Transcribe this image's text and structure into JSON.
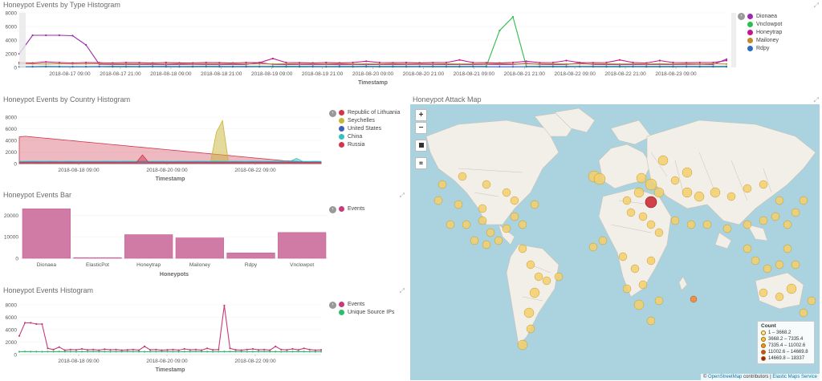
{
  "panels": {
    "type_histogram": {
      "title": "Honeypot Events by Type Histogram",
      "xlabel": "Timestamp",
      "xticks": [
        "2018-08-17 09:00",
        "2018-08-17 21:00",
        "2018-08-18 09:00",
        "2018-08-18 21:00",
        "2018-08-19 09:00",
        "2018-08-19 21:00",
        "2018-08-20 09:00",
        "2018-08-20 21:00",
        "2018-08-21 09:00",
        "2018-08-21 21:00",
        "2018-08-22 09:00",
        "2018-08-22 21:00",
        "2018-08-23 09:00"
      ],
      "yticks": [
        "8000",
        "6000",
        "4000",
        "2000",
        "0"
      ],
      "legend": [
        {
          "label": "Dionaea",
          "color": "#9c27b0"
        },
        {
          "label": "Vnclowpot",
          "color": "#2ebd4e"
        },
        {
          "label": "Honeytrap",
          "color": "#c2188f"
        },
        {
          "label": "Mailoney",
          "color": "#c28a2b"
        },
        {
          "label": "Rdpy",
          "color": "#2e6dbd"
        }
      ]
    },
    "country_histogram": {
      "title": "Honeypot Events by Country Histogram",
      "xlabel": "Timestamp",
      "xticks": [
        "2018-08-18 09:00",
        "2018-08-20 09:00",
        "2018-08-22 09:00"
      ],
      "yticks": [
        "8000",
        "6000",
        "4000",
        "2000",
        "0"
      ],
      "legend": [
        {
          "label": "Republic of Lithuania",
          "color": "#d0374c"
        },
        {
          "label": "Seychelles",
          "color": "#c8b53a"
        },
        {
          "label": "United States",
          "color": "#3f5fb8"
        },
        {
          "label": "China",
          "color": "#35c0c6"
        },
        {
          "label": "Russia",
          "color": "#d0374c"
        }
      ]
    },
    "events_bar": {
      "title": "Honeypot Events Bar",
      "xlabel": "Honeypots",
      "yticks": [
        "20000",
        "10000",
        "0"
      ],
      "legend": [
        {
          "label": "Events",
          "color": "#c73a7b"
        }
      ]
    },
    "events_histogram": {
      "title": "Honeypot Events Histogram",
      "xlabel": "Timestamp",
      "xticks": [
        "2018-08-18 09:00",
        "2018-08-20 09:00",
        "2018-08-22 09:00"
      ],
      "yticks": [
        "8000",
        "6000",
        "4000",
        "2000",
        "0"
      ],
      "legend": [
        {
          "label": "Events",
          "color": "#c73a7b"
        },
        {
          "label": "Unique Source IPs",
          "color": "#2ebd6e"
        }
      ]
    },
    "attack_map": {
      "title": "Honeypot Attack Map",
      "controls": {
        "zoom_in": "+",
        "zoom_out": "−"
      },
      "legend": {
        "title": "Count",
        "ranges": [
          {
            "label": "1 – 3668.2",
            "color": "#fde6a0"
          },
          {
            "label": "3668.2 – 7335.4",
            "color": "#f6c243"
          },
          {
            "label": "7335.4 – 11002.6",
            "color": "#f08c2a"
          },
          {
            "label": "11002.6 – 14669.8",
            "color": "#d9442b"
          },
          {
            "label": "14669.8 – 18337",
            "color": "#b01a1a"
          }
        ]
      },
      "attribution": {
        "prefix": "© ",
        "osm": "OpenStreetMap",
        "middle": " contributors | ",
        "ems": "Elastic Maps Service"
      }
    }
  },
  "chart_data": [
    {
      "type": "line",
      "title": "Honeypot Events by Type Histogram",
      "xlabel": "Timestamp",
      "ylim": [
        0,
        8000
      ],
      "series": [
        {
          "name": "Dionaea",
          "color": "#9c27b0",
          "values": [
            2000,
            4700,
            4700,
            4700,
            4650,
            3300,
            450,
            420,
            430,
            420,
            420,
            400,
            420,
            430,
            420,
            400,
            430,
            420,
            700,
            430,
            420,
            410,
            420,
            430,
            400,
            420,
            410,
            420,
            420,
            420,
            430,
            410,
            420,
            420,
            420,
            430,
            420,
            420,
            600,
            430,
            420,
            420,
            640,
            420,
            420,
            400,
            420,
            410,
            430,
            420,
            440,
            450,
            420,
            1200
          ]
        },
        {
          "name": "Vnclowpot",
          "color": "#2ebd4e",
          "values": [
            80,
            120,
            150,
            130,
            110,
            120,
            140,
            150,
            150,
            140,
            150,
            150,
            140,
            150,
            160,
            150,
            140,
            150,
            150,
            150,
            160,
            150,
            150,
            140,
            150,
            150,
            160,
            150,
            150,
            150,
            150,
            150,
            150,
            150,
            150,
            150,
            5400,
            7400,
            150,
            150,
            150,
            150,
            150,
            150,
            150,
            150,
            150,
            150,
            150,
            150,
            150,
            150,
            150,
            150
          ]
        },
        {
          "name": "Honeytrap",
          "color": "#c2188f",
          "values": [
            700,
            650,
            800,
            700,
            650,
            700,
            680,
            650,
            700,
            680,
            650,
            700,
            660,
            650,
            700,
            680,
            650,
            700,
            680,
            1300,
            700,
            680,
            650,
            700,
            660,
            700,
            900,
            700,
            680,
            700,
            660,
            690,
            700,
            1100,
            700,
            680,
            650,
            700,
            900,
            680,
            700,
            1000,
            700,
            680,
            700,
            1100,
            700,
            650,
            1000,
            700,
            680,
            700,
            700,
            1000
          ]
        },
        {
          "name": "Mailoney",
          "color": "#c28a2b",
          "values": [
            500,
            520,
            500,
            540,
            500,
            510,
            530,
            500,
            520,
            500,
            510,
            500,
            520,
            500,
            510,
            500,
            520,
            500,
            510,
            500,
            520,
            500,
            510,
            500,
            520,
            500,
            510,
            500,
            520,
            500,
            510,
            500,
            520,
            500,
            510,
            500,
            520,
            500,
            510,
            500,
            520,
            500,
            510,
            500,
            520,
            500,
            510,
            500,
            520,
            500,
            510,
            500,
            520,
            500
          ]
        },
        {
          "name": "Rdpy",
          "color": "#2e6dbd",
          "values": [
            100,
            90,
            110,
            100,
            90,
            100,
            110,
            100,
            90,
            100,
            110,
            100,
            90,
            100,
            110,
            100,
            90,
            100,
            110,
            100,
            90,
            100,
            110,
            100,
            90,
            100,
            110,
            100,
            90,
            100,
            110,
            100,
            90,
            100,
            110,
            100,
            90,
            100,
            110,
            100,
            90,
            100,
            110,
            100,
            90,
            100,
            110,
            100,
            90,
            100,
            110,
            100,
            90,
            100
          ]
        }
      ]
    },
    {
      "type": "area",
      "title": "Honeypot Events by Country Histogram",
      "xlabel": "Timestamp",
      "ylim": [
        0,
        8000
      ],
      "series": [
        {
          "name": "Republic of Lithuania",
          "color": "#d0374c",
          "values": [
            4600,
            4700,
            4600,
            4500,
            4400,
            4300,
            4200,
            4100,
            4000,
            3900,
            3800,
            3700,
            3600,
            3500,
            3400,
            3300,
            3200,
            3100,
            3000,
            2900,
            2800,
            2700,
            2600,
            2500,
            2400,
            2300,
            2200,
            2100,
            2000,
            1900,
            1800,
            1700,
            1600,
            1500,
            1400,
            1300,
            1200,
            1100,
            1000,
            900,
            800,
            700,
            600,
            500,
            450,
            400,
            350,
            300,
            250,
            200
          ]
        },
        {
          "name": "Seychelles",
          "color": "#c8b53a",
          "values": [
            0,
            0,
            0,
            0,
            0,
            0,
            0,
            0,
            0,
            0,
            0,
            0,
            0,
            0,
            0,
            0,
            0,
            0,
            0,
            0,
            0,
            0,
            0,
            0,
            0,
            0,
            0,
            0,
            0,
            0,
            0,
            0,
            5400,
            7400,
            0,
            0,
            0,
            0,
            0,
            0,
            0,
            0,
            0,
            0,
            0,
            0,
            0,
            0,
            0,
            0
          ]
        },
        {
          "name": "United States",
          "color": "#3f5fb8",
          "values": [
            300,
            320,
            300,
            340,
            310,
            320,
            330,
            300,
            320,
            310,
            300,
            320,
            310,
            330,
            300,
            320,
            310,
            300,
            320,
            310,
            300,
            320,
            330,
            300,
            310,
            320,
            300,
            310,
            320,
            300,
            310,
            320,
            300,
            310,
            300,
            320,
            310,
            300,
            320,
            310,
            300,
            320,
            310,
            300,
            320,
            310,
            300,
            320,
            310,
            300
          ]
        },
        {
          "name": "China",
          "color": "#35c0c6",
          "values": [
            400,
            380,
            420,
            400,
            390,
            410,
            400,
            380,
            420,
            400,
            390,
            410,
            400,
            380,
            420,
            400,
            390,
            410,
            400,
            380,
            420,
            400,
            390,
            410,
            400,
            380,
            420,
            400,
            390,
            410,
            400,
            380,
            420,
            400,
            390,
            410,
            400,
            380,
            420,
            400,
            390,
            410,
            400,
            380,
            420,
            900,
            400,
            390,
            410,
            400
          ]
        },
        {
          "name": "Russia",
          "color": "#d0374c",
          "values": [
            200,
            220,
            200,
            240,
            210,
            220,
            230,
            200,
            220,
            210,
            200,
            220,
            210,
            230,
            200,
            220,
            210,
            200,
            220,
            210,
            1500,
            220,
            230,
            200,
            210,
            220,
            200,
            210,
            220,
            200,
            210,
            220,
            200,
            210,
            200,
            220,
            210,
            200,
            220,
            210,
            200,
            220,
            210,
            200,
            220,
            210,
            200,
            220,
            210,
            200
          ]
        }
      ]
    },
    {
      "type": "bar",
      "title": "Honeypot Events Bar",
      "xlabel": "Honeypots",
      "categories": [
        "Dionaea",
        "ElasticPot",
        "Honeytrap",
        "Mailoney",
        "Rdpy",
        "Vnclowpot"
      ],
      "ylim": [
        0,
        25000
      ],
      "series": [
        {
          "name": "Events",
          "values": [
            23000,
            300,
            11000,
            9500,
            2500,
            12000
          ]
        }
      ]
    },
    {
      "type": "line",
      "title": "Honeypot Events Histogram",
      "xlabel": "Timestamp",
      "ylim": [
        0,
        8000
      ],
      "series": [
        {
          "name": "Events",
          "color": "#c73a7b",
          "values": [
            3000,
            5100,
            5100,
            4900,
            4900,
            1000,
            800,
            1200,
            700,
            800,
            750,
            900,
            750,
            800,
            700,
            850,
            750,
            800,
            700,
            750,
            800,
            700,
            1300,
            750,
            800,
            700,
            750,
            800,
            700,
            900,
            750,
            800,
            700,
            1000,
            750,
            800,
            7900,
            1000,
            750,
            700,
            800,
            900,
            750,
            800,
            700,
            1300,
            800,
            750,
            900,
            750,
            1000,
            800,
            700,
            750
          ]
        },
        {
          "name": "Unique Source IPs",
          "color": "#2ebd6e",
          "values": [
            450,
            480,
            460,
            470,
            450,
            460,
            470,
            480,
            460,
            470,
            450,
            460,
            470,
            480,
            460,
            470,
            450,
            460,
            470,
            480,
            460,
            470,
            450,
            460,
            470,
            480,
            460,
            470,
            450,
            460,
            470,
            480,
            460,
            470,
            450,
            460,
            470,
            480,
            460,
            470,
            450,
            460,
            470,
            480,
            460,
            470,
            450,
            460,
            470,
            480,
            460,
            470,
            450,
            460
          ]
        }
      ]
    }
  ]
}
